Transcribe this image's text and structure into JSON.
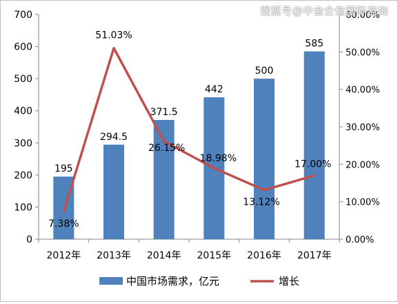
{
  "watermark": "搜狐号@中金企信国际咨询",
  "chart_data": {
    "type": "bar",
    "categories": [
      "2012年",
      "2013年",
      "2014年",
      "2015年",
      "2016年",
      "2017年"
    ],
    "series": [
      {
        "name": "中国市场需求，亿元",
        "type": "bar",
        "axis": "left",
        "values": [
          195,
          294.5,
          371.5,
          442,
          500,
          585
        ],
        "labels": [
          "195",
          "294.5",
          "371.5",
          "442",
          "500",
          "585"
        ]
      },
      {
        "name": "增长",
        "type": "line",
        "axis": "right",
        "values": [
          7.38,
          51.03,
          26.15,
          18.98,
          13.12,
          17.0
        ],
        "labels": [
          "7.38%",
          "51.03%",
          "26.15%",
          "18.98%",
          "13.12%",
          "17.00%"
        ]
      }
    ],
    "left_axis": {
      "ylim": [
        0,
        700
      ],
      "ticks": [
        "0",
        "100",
        "200",
        "300",
        "400",
        "500",
        "600",
        "700"
      ]
    },
    "right_axis": {
      "ylim": [
        0,
        60
      ],
      "ticks": [
        "0.00%",
        "10.00%",
        "20.00%",
        "30.00%",
        "40.00%",
        "50.00%",
        "60.00%"
      ]
    },
    "legend_position": "bottom",
    "grid": false,
    "colors": {
      "bar": "#4f81bd",
      "line": "#c0504d",
      "axis": "#868686"
    }
  }
}
